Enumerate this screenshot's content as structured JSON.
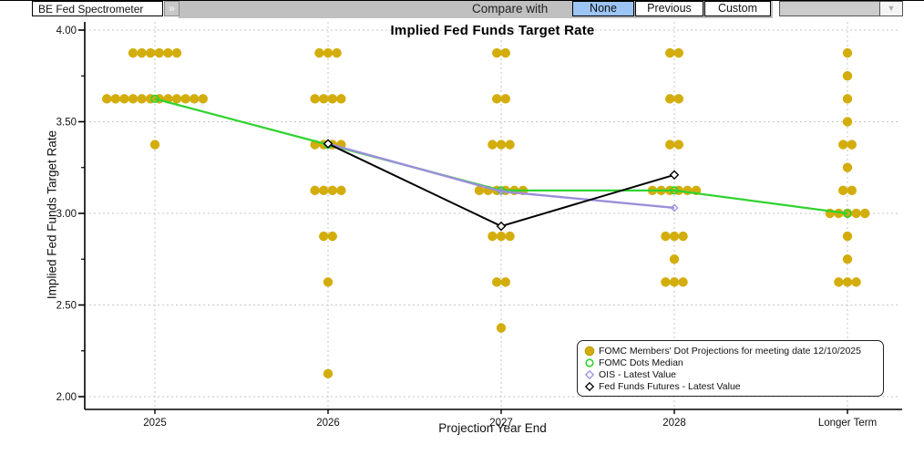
{
  "toolbar": {
    "app_selector": "BE Fed Spectrometer",
    "expand_button": "»",
    "compare_label": "Compare with",
    "compare_options": [
      {
        "label": "None",
        "selected": true
      },
      {
        "label": "Previous",
        "selected": false
      },
      {
        "label": "Custom",
        "selected": false
      }
    ],
    "compare_dropdown_value": "",
    "selected_color": "#9cc4f5"
  },
  "chart_data": {
    "type": "scatter",
    "title": "Implied Fed Funds Target Rate",
    "xlabel": "Projection Year End",
    "ylabel": "Implied Fed Funds Target Rate",
    "ylim": [
      2.0,
      4.0
    ],
    "ytick_values": [
      4.0,
      3.5,
      3.0,
      2.5,
      2.0
    ],
    "ytick_labels": [
      "4.00",
      "3.50",
      "3.00",
      "2.50",
      "2.00"
    ],
    "ytick_minor": [
      3.75,
      3.25,
      2.75,
      2.25
    ],
    "categories": [
      "2025",
      "2026",
      "2027",
      "2028",
      "Longer Term"
    ],
    "grid": "dashed",
    "legend_position": "lower right",
    "series": [
      {
        "name": "FOMC Members' Dot Projections for meeting date 12/10/2025",
        "type": "dots",
        "color": "#d3ad0b",
        "legend_marker": "filled-circle",
        "groups": [
          {
            "category": "2025",
            "value": 3.875,
            "count": 6
          },
          {
            "category": "2025",
            "value": 3.625,
            "count": 12
          },
          {
            "category": "2025",
            "value": 3.375,
            "count": 1
          },
          {
            "category": "2026",
            "value": 3.875,
            "count": 3
          },
          {
            "category": "2026",
            "value": 3.625,
            "count": 4
          },
          {
            "category": "2026",
            "value": 3.375,
            "count": 4
          },
          {
            "category": "2026",
            "value": 3.125,
            "count": 4
          },
          {
            "category": "2026",
            "value": 2.875,
            "count": 2
          },
          {
            "category": "2026",
            "value": 2.625,
            "count": 1
          },
          {
            "category": "2026",
            "value": 2.125,
            "count": 1
          },
          {
            "category": "2027",
            "value": 3.875,
            "count": 2
          },
          {
            "category": "2027",
            "value": 3.625,
            "count": 2
          },
          {
            "category": "2027",
            "value": 3.375,
            "count": 3
          },
          {
            "category": "2027",
            "value": 3.125,
            "count": 6
          },
          {
            "category": "2027",
            "value": 2.875,
            "count": 3
          },
          {
            "category": "2027",
            "value": 2.625,
            "count": 2
          },
          {
            "category": "2027",
            "value": 2.375,
            "count": 1
          },
          {
            "category": "2028",
            "value": 3.875,
            "count": 2
          },
          {
            "category": "2028",
            "value": 3.625,
            "count": 2
          },
          {
            "category": "2028",
            "value": 3.375,
            "count": 2
          },
          {
            "category": "2028",
            "value": 3.125,
            "count": 6
          },
          {
            "category": "2028",
            "value": 2.875,
            "count": 3
          },
          {
            "category": "2028",
            "value": 2.75,
            "count": 1
          },
          {
            "category": "2028",
            "value": 2.625,
            "count": 3
          },
          {
            "category": "Longer Term",
            "value": 3.875,
            "count": 1
          },
          {
            "category": "Longer Term",
            "value": 3.75,
            "count": 1
          },
          {
            "category": "Longer Term",
            "value": 3.625,
            "count": 1
          },
          {
            "category": "Longer Term",
            "value": 3.5,
            "count": 1
          },
          {
            "category": "Longer Term",
            "value": 3.375,
            "count": 2
          },
          {
            "category": "Longer Term",
            "value": 3.25,
            "count": 1
          },
          {
            "category": "Longer Term",
            "value": 3.125,
            "count": 2
          },
          {
            "category": "Longer Term",
            "value": 3.0,
            "count": 5
          },
          {
            "category": "Longer Term",
            "value": 2.875,
            "count": 1
          },
          {
            "category": "Longer Term",
            "value": 2.75,
            "count": 1
          },
          {
            "category": "Longer Term",
            "value": 2.625,
            "count": 3
          }
        ]
      },
      {
        "name": "FOMC Dots Median",
        "type": "line",
        "color": "#2fd32f",
        "legend_marker": "open-circle",
        "x": [
          "2025",
          "2026",
          "2027",
          "2028",
          "Longer Term"
        ],
        "y": [
          3.625,
          3.375,
          3.125,
          3.125,
          3.0
        ]
      },
      {
        "name": "OIS - Latest Value",
        "type": "line",
        "color": "#9b8fdb",
        "legend_marker": "open-diamond",
        "x": [
          "2026",
          "2027",
          "2028"
        ],
        "y": [
          3.38,
          3.12,
          3.03
        ]
      },
      {
        "name": "Fed Funds Futures - Latest Value",
        "type": "line",
        "color": "#000000",
        "legend_marker": "open-diamond",
        "x": [
          "2026",
          "2027",
          "2028"
        ],
        "y": [
          3.38,
          2.93,
          3.21
        ]
      }
    ]
  }
}
